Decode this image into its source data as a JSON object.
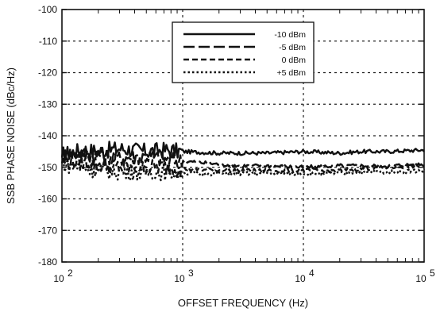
{
  "chart_data": {
    "type": "line",
    "title": "",
    "xlabel": "OFFSET FREQUENCY (Hz)",
    "ylabel": "SSB PHASE NOISE (dBc/Hz)",
    "x_scale": "log",
    "xlim": [
      100,
      100000
    ],
    "ylim": [
      -180,
      -100
    ],
    "grid": "dotted",
    "legend_position": "top-center",
    "x_tick_labels": [
      {
        "base": "10",
        "exp": "2"
      },
      {
        "base": "10",
        "exp": "3"
      },
      {
        "base": "10",
        "exp": "4"
      },
      {
        "base": "10",
        "exp": "5"
      }
    ],
    "y_tick_labels": [
      "-100",
      "-110",
      "-120",
      "-130",
      "-140",
      "-150",
      "-160",
      "-170",
      "-180"
    ],
    "series": [
      {
        "name": "-10 dBm",
        "dash": "solid",
        "points": [
          [
            100,
            -146
          ],
          [
            150,
            -144.5
          ],
          [
            200,
            -145
          ],
          [
            300,
            -144
          ],
          [
            500,
            -145
          ],
          [
            700,
            -144.5
          ],
          [
            1000,
            -145
          ],
          [
            2000,
            -145.5
          ],
          [
            3000,
            -145.5
          ],
          [
            5000,
            -145.5
          ],
          [
            10000,
            -145
          ],
          [
            20000,
            -145.5
          ],
          [
            30000,
            -145
          ],
          [
            50000,
            -145
          ],
          [
            100000,
            -144.5
          ]
        ]
      },
      {
        "name": "-5 dBm",
        "dash": "long-dash",
        "points": [
          [
            100,
            -145
          ],
          [
            150,
            -146
          ],
          [
            200,
            -146
          ],
          [
            300,
            -147
          ],
          [
            500,
            -146.5
          ],
          [
            700,
            -147.5
          ],
          [
            1000,
            -148
          ],
          [
            2000,
            -149
          ],
          [
            3000,
            -149.5
          ],
          [
            5000,
            -149.5
          ],
          [
            10000,
            -150
          ],
          [
            20000,
            -149.5
          ],
          [
            30000,
            -149.5
          ],
          [
            50000,
            -149.5
          ],
          [
            100000,
            -149
          ]
        ]
      },
      {
        "name": "0 dBm",
        "dash": "short-dash",
        "points": [
          [
            100,
            -148
          ],
          [
            150,
            -148.5
          ],
          [
            200,
            -149
          ],
          [
            300,
            -150
          ],
          [
            500,
            -150
          ],
          [
            700,
            -150
          ],
          [
            1000,
            -150.5
          ],
          [
            2000,
            -151
          ],
          [
            3000,
            -151
          ],
          [
            5000,
            -151
          ],
          [
            10000,
            -151
          ],
          [
            20000,
            -151
          ],
          [
            30000,
            -150.5
          ],
          [
            50000,
            -150
          ],
          [
            100000,
            -149.5
          ]
        ]
      },
      {
        "name": "+5 dBm",
        "dash": "dotted",
        "points": [
          [
            100,
            -149
          ],
          [
            150,
            -150
          ],
          [
            200,
            -151
          ],
          [
            300,
            -151.5
          ],
          [
            500,
            -151.5
          ],
          [
            700,
            -151.5
          ],
          [
            1000,
            -152
          ],
          [
            2000,
            -152
          ],
          [
            3000,
            -152
          ],
          [
            5000,
            -152
          ],
          [
            10000,
            -152
          ],
          [
            20000,
            -152
          ],
          [
            30000,
            -151.5
          ],
          [
            50000,
            -151.5
          ],
          [
            100000,
            -151
          ]
        ]
      }
    ]
  }
}
